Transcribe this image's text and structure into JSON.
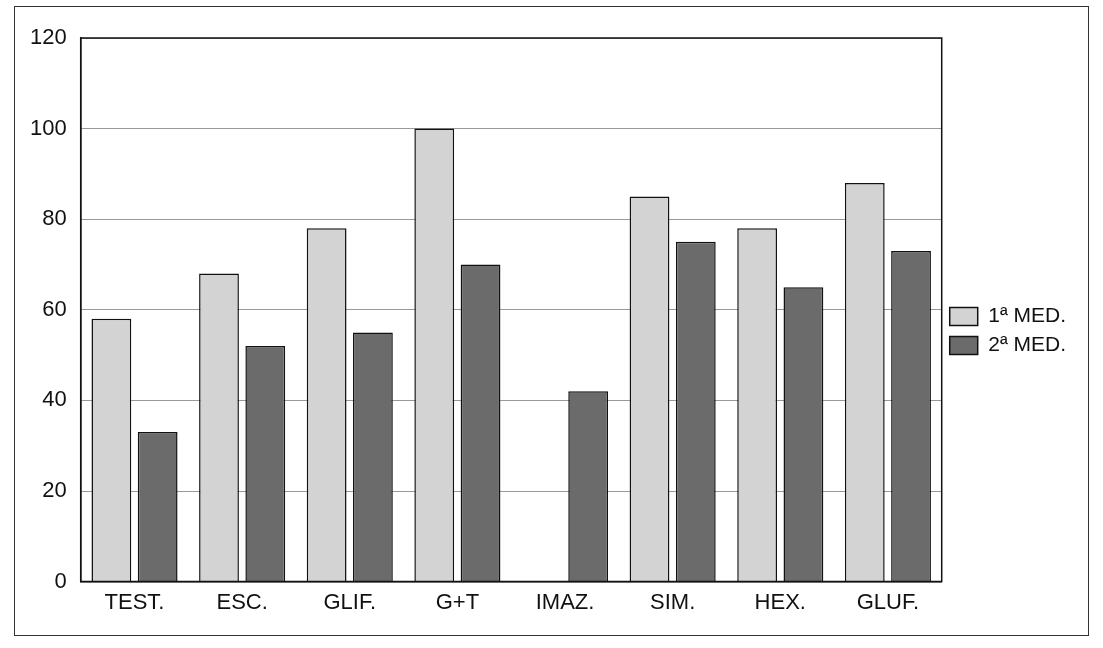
{
  "chart_data": {
    "type": "bar",
    "categories": [
      "TEST.",
      "ESC.",
      "GLIF.",
      "G+T",
      "IMAZ.",
      "SIM.",
      "HEX.",
      "GLUF."
    ],
    "series": [
      {
        "name": "1ª MED.",
        "color": "#d3d3d3",
        "values": [
          58,
          68,
          78,
          100,
          null,
          85,
          78,
          88
        ]
      },
      {
        "name": "2ª MED.",
        "color": "#6b6b6b",
        "values": [
          33,
          52,
          55,
          70,
          42,
          75,
          65,
          73
        ]
      }
    ],
    "ylim": [
      0,
      120
    ],
    "yticks": [
      0,
      20,
      40,
      60,
      80,
      100,
      120
    ],
    "grid": "y",
    "legend": "right"
  }
}
